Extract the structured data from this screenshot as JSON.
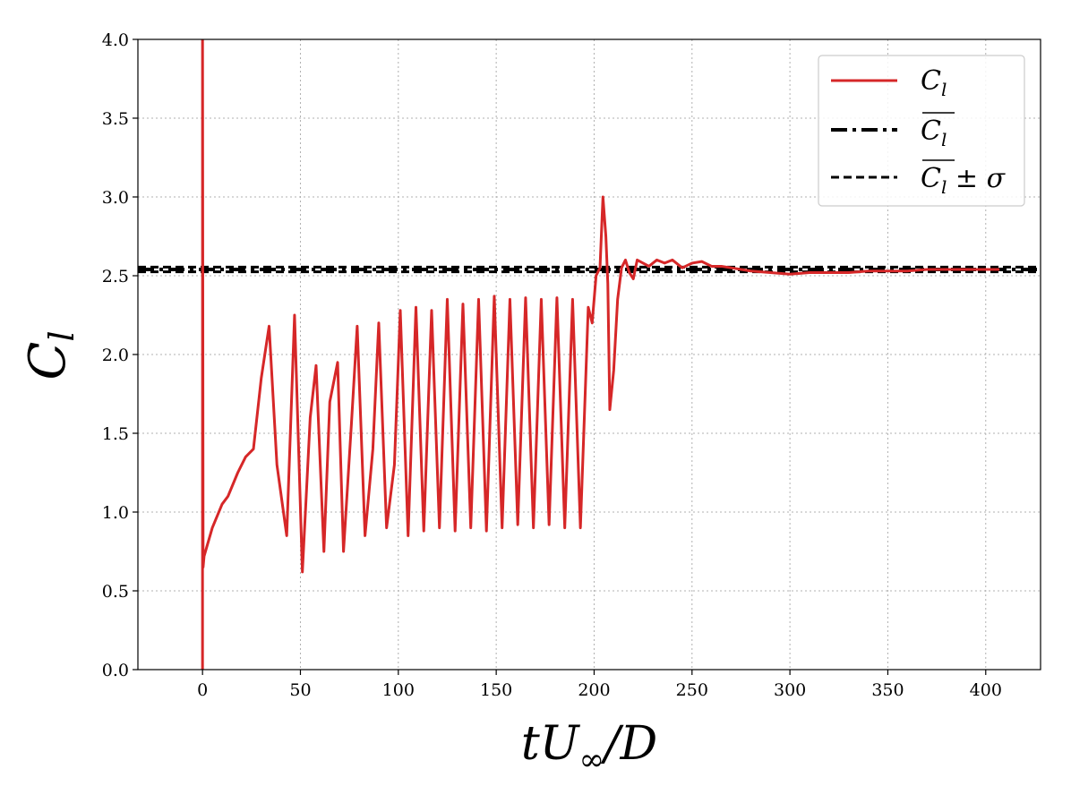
{
  "chart_data": {
    "type": "line",
    "xlabel": "tU∞/D",
    "ylabel": "Cl",
    "xlim": [
      -33,
      428
    ],
    "ylim": [
      0,
      4
    ],
    "xticks": [
      0,
      50,
      100,
      150,
      200,
      250,
      300,
      350,
      400
    ],
    "yticks": [
      0.0,
      0.5,
      1.0,
      1.5,
      2.0,
      2.5,
      3.0,
      3.5,
      4.0
    ],
    "xtick_labels": [
      "0",
      "50",
      "100",
      "150",
      "200",
      "250",
      "300",
      "350",
      "400"
    ],
    "ytick_labels": [
      "0.0",
      "0.5",
      "1.0",
      "1.5",
      "2.0",
      "2.5",
      "3.0",
      "3.5",
      "4.0"
    ],
    "grid": true,
    "legend_position": "top-right",
    "legend": [
      "Cl",
      "C̄l",
      "C̄l ± σ"
    ],
    "series": [
      {
        "name": "Cl",
        "color": "#d62728",
        "style": "solid",
        "x": [
          0,
          0,
          0.3,
          0.8,
          5,
          10,
          13,
          18,
          22,
          26,
          30,
          34,
          38,
          43,
          47,
          51,
          55,
          58,
          62,
          65,
          69,
          72,
          76,
          79,
          83,
          87,
          90,
          94,
          98,
          101,
          105,
          109,
          113,
          117,
          121,
          125,
          129,
          133,
          137,
          141,
          145,
          149,
          153,
          157,
          161,
          165,
          169,
          173,
          177,
          181,
          185,
          189,
          193,
          197,
          199,
          201,
          203,
          204.5,
          206,
          207,
          208,
          210,
          212,
          214,
          216,
          218,
          220,
          222,
          225,
          228,
          232,
          236,
          240,
          245,
          250,
          255,
          260,
          265,
          270,
          280,
          290,
          300,
          310,
          320,
          330,
          340,
          350,
          360,
          370,
          380,
          390,
          400,
          407
        ],
        "values": [
          0.0,
          4.1,
          0.65,
          0.72,
          0.9,
          1.05,
          1.1,
          1.25,
          1.35,
          1.4,
          1.85,
          2.18,
          1.3,
          0.85,
          2.25,
          0.62,
          1.6,
          1.93,
          0.75,
          1.7,
          1.95,
          0.75,
          1.55,
          2.18,
          0.85,
          1.4,
          2.2,
          0.9,
          1.3,
          2.28,
          0.85,
          2.3,
          0.88,
          2.28,
          0.9,
          2.35,
          0.88,
          2.32,
          0.9,
          2.35,
          0.88,
          2.37,
          0.9,
          2.35,
          0.92,
          2.36,
          0.9,
          2.35,
          0.92,
          2.36,
          0.9,
          2.35,
          0.9,
          2.3,
          2.2,
          2.5,
          2.55,
          3.0,
          2.75,
          2.45,
          1.65,
          1.9,
          2.35,
          2.55,
          2.6,
          2.52,
          2.48,
          2.6,
          2.58,
          2.56,
          2.6,
          2.58,
          2.6,
          2.55,
          2.58,
          2.59,
          2.56,
          2.56,
          2.55,
          2.53,
          2.52,
          2.51,
          2.52,
          2.52,
          2.52,
          2.53,
          2.53,
          2.53,
          2.54,
          2.54,
          2.54,
          2.54,
          2.54
        ]
      },
      {
        "name": "C̄l",
        "color": "#000000",
        "style": "dashdot",
        "value": 2.54
      },
      {
        "name": "C̄l ± σ",
        "color": "#000000",
        "style": "dashed",
        "values": [
          2.525,
          2.555
        ]
      }
    ]
  }
}
